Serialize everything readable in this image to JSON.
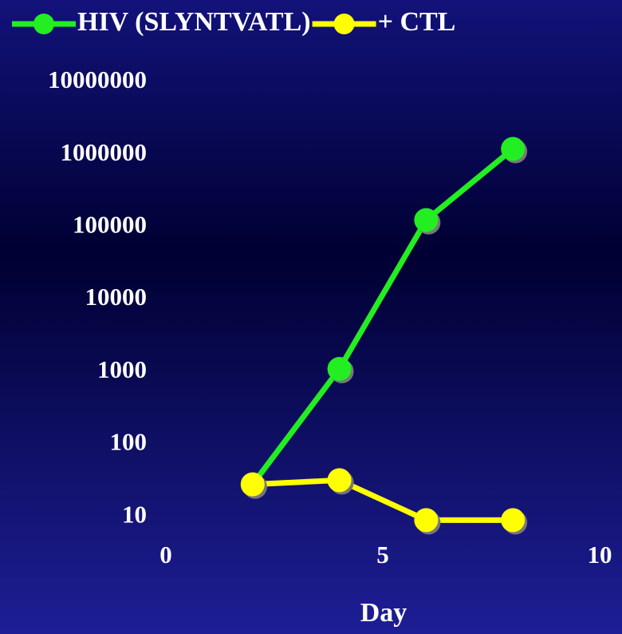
{
  "chart_data": {
    "type": "line",
    "x_label": "Day",
    "x": [
      2,
      4,
      6,
      8
    ],
    "series": [
      {
        "name": "HIV (SLYNTVATL)",
        "color": "#22ee22",
        "values": [
          28,
          1100,
          125000,
          1200000
        ]
      },
      {
        "name": "+ CTL",
        "color": "#ffff00",
        "values": [
          28,
          32,
          9,
          9
        ]
      }
    ],
    "xlim": [
      0,
      10
    ],
    "xticks": [
      0,
      5,
      10
    ],
    "ylim": [
      8,
      10000000
    ],
    "yticks": [
      10,
      100,
      1000,
      10000,
      100000,
      1000000,
      10000000
    ],
    "log_y": true,
    "grid": false,
    "legend": "top"
  }
}
